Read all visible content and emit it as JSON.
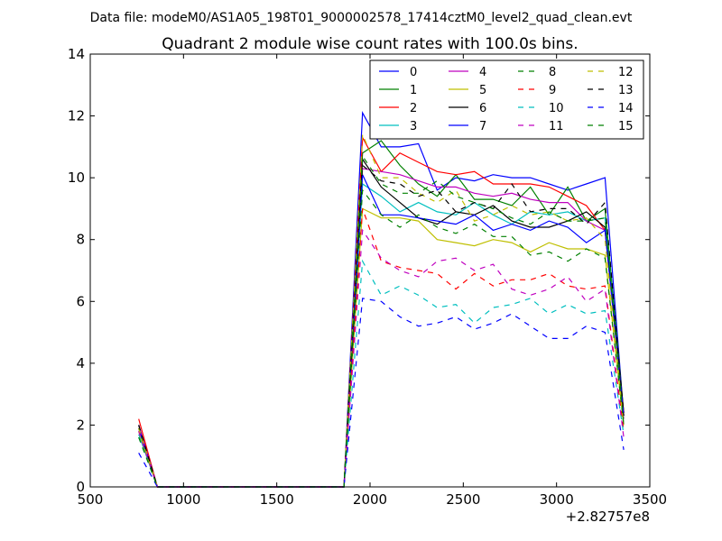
{
  "chart_data": {
    "type": "line",
    "suptitle": "Data file: modeM0/AS1A05_198T01_9000002578_17414cztM0_level2_quad_clean.evt",
    "title": "Quadrant 2 module wise count rates with 100.0s bins.",
    "xlabel": "",
    "ylabel": "",
    "x_offset_label": "+2.82757e8",
    "xlim": [
      500,
      3500
    ],
    "ylim": [
      0,
      14
    ],
    "xticks": [
      500,
      1000,
      1500,
      2000,
      2500,
      3000,
      3500
    ],
    "xtick_labels": [
      "500",
      "1000",
      "1500",
      "2000",
      "2500",
      "3000",
      "3500"
    ],
    "yticks": [
      0,
      2,
      4,
      6,
      8,
      10,
      12,
      14
    ],
    "ytick_labels": [
      "0",
      "2",
      "4",
      "6",
      "8",
      "10",
      "12",
      "14"
    ],
    "grid": false,
    "legend_position": "top-right",
    "legend_columns": 4,
    "x": [
      760,
      860,
      960,
      1060,
      1160,
      1260,
      1360,
      1460,
      1560,
      1660,
      1760,
      1860,
      1960,
      2060,
      2160,
      2260,
      2360,
      2460,
      2560,
      2660,
      2760,
      2860,
      2960,
      3060,
      3160,
      3260,
      3360
    ],
    "series": [
      {
        "name": "0",
        "color": "#0000ff",
        "dash": "solid",
        "values": [
          2.0,
          0,
          0,
          0,
          0,
          0,
          0,
          0,
          0,
          0,
          0,
          0,
          12.1,
          11.0,
          11.0,
          11.1,
          9.6,
          10.0,
          9.9,
          10.1,
          10.0,
          10.0,
          9.8,
          9.6,
          9.8,
          10.0,
          2.3
        ]
      },
      {
        "name": "1",
        "color": "#008000",
        "dash": "solid",
        "values": [
          2.0,
          0,
          0,
          0,
          0,
          0,
          0,
          0,
          0,
          0,
          0,
          0,
          10.8,
          11.2,
          10.4,
          9.8,
          9.4,
          10.1,
          9.3,
          9.3,
          9.1,
          9.7,
          8.8,
          9.7,
          8.6,
          9.0,
          2.4
        ]
      },
      {
        "name": "2",
        "color": "#ff0000",
        "dash": "solid",
        "values": [
          2.2,
          0,
          0,
          0,
          0,
          0,
          0,
          0,
          0,
          0,
          0,
          0,
          11.3,
          10.2,
          10.8,
          10.5,
          10.2,
          10.1,
          10.2,
          9.8,
          9.8,
          9.8,
          9.7,
          9.4,
          9.1,
          8.3,
          2.4
        ]
      },
      {
        "name": "3",
        "color": "#00bfbf",
        "dash": "solid",
        "values": [
          1.7,
          0,
          0,
          0,
          0,
          0,
          0,
          0,
          0,
          0,
          0,
          0,
          9.8,
          9.4,
          8.9,
          9.2,
          8.9,
          8.8,
          9.2,
          8.8,
          8.5,
          8.9,
          8.8,
          8.9,
          8.6,
          8.7,
          2.2
        ]
      },
      {
        "name": "4",
        "color": "#bf00bf",
        "dash": "solid",
        "values": [
          2.0,
          0,
          0,
          0,
          0,
          0,
          0,
          0,
          0,
          0,
          0,
          0,
          10.3,
          10.2,
          10.1,
          9.9,
          9.7,
          9.7,
          9.5,
          9.4,
          9.5,
          9.3,
          9.2,
          9.2,
          8.6,
          8.3,
          2.2
        ]
      },
      {
        "name": "5",
        "color": "#bfbf00",
        "dash": "solid",
        "values": [
          1.8,
          0,
          0,
          0,
          0,
          0,
          0,
          0,
          0,
          0,
          0,
          0,
          9.0,
          8.7,
          8.7,
          8.6,
          8.0,
          7.9,
          7.8,
          8.0,
          7.9,
          7.6,
          7.9,
          7.7,
          7.7,
          7.5,
          2.0
        ]
      },
      {
        "name": "6",
        "color": "#000000",
        "dash": "solid",
        "values": [
          1.9,
          0,
          0,
          0,
          0,
          0,
          0,
          0,
          0,
          0,
          0,
          0,
          10.6,
          9.7,
          9.2,
          8.7,
          8.5,
          8.9,
          8.8,
          9.1,
          8.6,
          8.4,
          8.4,
          8.6,
          8.9,
          8.4,
          2.4
        ]
      },
      {
        "name": "7",
        "color": "#0000ff",
        "dash": "solid",
        "values": [
          1.9,
          0,
          0,
          0,
          0,
          0,
          0,
          0,
          0,
          0,
          0,
          0,
          10.1,
          8.8,
          8.8,
          8.7,
          8.6,
          8.5,
          8.8,
          8.3,
          8.5,
          8.3,
          8.6,
          8.4,
          7.9,
          8.3,
          2.3
        ]
      },
      {
        "name": "8",
        "color": "#008000",
        "dash": "dashed",
        "values": [
          1.9,
          0,
          0,
          0,
          0,
          0,
          0,
          0,
          0,
          0,
          0,
          0,
          9.6,
          8.8,
          8.4,
          8.8,
          8.4,
          8.2,
          8.5,
          8.1,
          8.1,
          7.5,
          7.6,
          7.3,
          7.7,
          7.4,
          2.0
        ]
      },
      {
        "name": "9",
        "color": "#ff0000",
        "dash": "dashed",
        "values": [
          1.8,
          0,
          0,
          0,
          0,
          0,
          0,
          0,
          0,
          0,
          0,
          0,
          9.0,
          7.3,
          7.1,
          7.0,
          6.9,
          6.4,
          6.9,
          6.5,
          6.7,
          6.7,
          6.9,
          6.5,
          6.4,
          6.5,
          1.8
        ]
      },
      {
        "name": "10",
        "color": "#00bfbf",
        "dash": "dashed",
        "values": [
          1.6,
          0,
          0,
          0,
          0,
          0,
          0,
          0,
          0,
          0,
          0,
          0,
          7.3,
          6.2,
          6.5,
          6.2,
          5.8,
          5.9,
          5.3,
          5.8,
          5.9,
          6.1,
          5.6,
          5.9,
          5.6,
          5.7,
          1.7
        ]
      },
      {
        "name": "11",
        "color": "#bf00bf",
        "dash": "dashed",
        "values": [
          1.8,
          0,
          0,
          0,
          0,
          0,
          0,
          0,
          0,
          0,
          0,
          0,
          8.3,
          7.4,
          7.0,
          6.8,
          7.3,
          7.4,
          7.0,
          7.2,
          6.4,
          6.2,
          6.4,
          6.8,
          6.0,
          6.4,
          1.6
        ]
      },
      {
        "name": "12",
        "color": "#bfbf00",
        "dash": "dashed",
        "values": [
          1.9,
          0,
          0,
          0,
          0,
          0,
          0,
          0,
          0,
          0,
          0,
          0,
          11.4,
          10.0,
          10.0,
          9.5,
          9.2,
          9.6,
          8.6,
          8.8,
          9.1,
          8.8,
          8.9,
          8.6,
          8.7,
          8.0,
          2.1
        ]
      },
      {
        "name": "13",
        "color": "#000000",
        "dash": "dashed",
        "values": [
          2.0,
          0,
          0,
          0,
          0,
          0,
          0,
          0,
          0,
          0,
          0,
          0,
          10.4,
          9.9,
          9.8,
          9.4,
          9.6,
          8.9,
          9.2,
          9.0,
          9.8,
          8.9,
          9.0,
          9.0,
          8.5,
          9.2,
          2.3
        ]
      },
      {
        "name": "14",
        "color": "#0000ff",
        "dash": "dashed",
        "values": [
          1.1,
          0,
          0,
          0,
          0,
          0,
          0,
          0,
          0,
          0,
          0,
          0,
          6.1,
          6.0,
          5.5,
          5.2,
          5.3,
          5.5,
          5.1,
          5.3,
          5.6,
          5.2,
          4.8,
          4.8,
          5.2,
          5.0,
          1.2
        ]
      },
      {
        "name": "15",
        "color": "#008000",
        "dash": "dashed",
        "values": [
          1.6,
          0,
          0,
          0,
          0,
          0,
          0,
          0,
          0,
          0,
          0,
          0,
          10.7,
          9.8,
          9.5,
          9.5,
          9.9,
          9.4,
          9.2,
          9.0,
          8.7,
          8.5,
          8.9,
          8.6,
          8.6,
          8.7,
          2.0
        ]
      }
    ]
  }
}
